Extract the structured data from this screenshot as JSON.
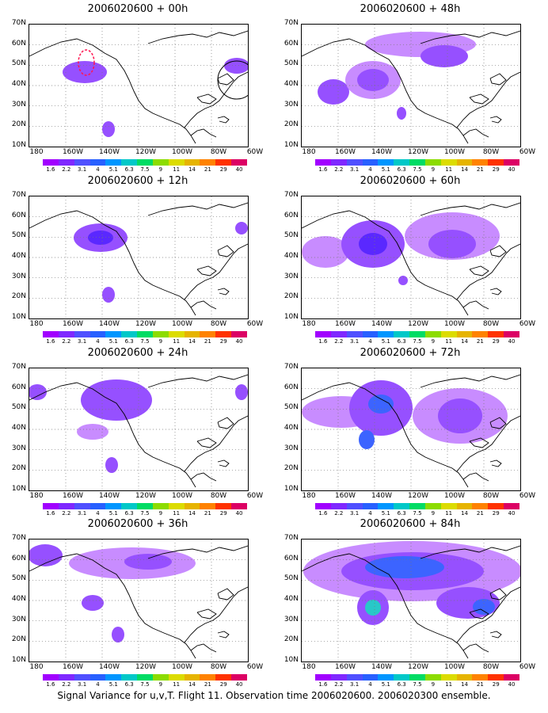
{
  "panels": [
    {
      "title": "2006020600 + 00h"
    },
    {
      "title": "2006020600 + 48h"
    },
    {
      "title": "2006020600 + 12h"
    },
    {
      "title": "2006020600 + 60h"
    },
    {
      "title": "2006020600 + 24h"
    },
    {
      "title": "2006020600 + 72h"
    },
    {
      "title": "2006020600 + 36h"
    },
    {
      "title": "2006020600 + 84h"
    }
  ],
  "y_labels": [
    "70N",
    "60N",
    "50N",
    "40N",
    "30N",
    "20N",
    "10N"
  ],
  "x_labels": [
    "180",
    "160W",
    "140W",
    "120W",
    "100W",
    "80W",
    "60W"
  ],
  "colorbar": {
    "labels": [
      "1.6",
      "2.2",
      "3.1",
      "4",
      "5.1",
      "6.3",
      "7.5",
      "9",
      "11",
      "14",
      "21",
      "29",
      "40"
    ],
    "colors": [
      "#a100ff",
      "#7f28ff",
      "#5050ff",
      "#2860ff",
      "#0096ff",
      "#00c8c8",
      "#00dc64",
      "#8cdc00",
      "#dcdc00",
      "#e6b400",
      "#ff8200",
      "#ff3200",
      "#dc0064"
    ]
  },
  "footer": "Signal Variance for u,v,T. Flight 11. Observation time 2006020600. 2006020300 ensemble.",
  "colors": {
    "light": "#c88cff",
    "medium": "#9650ff",
    "strong": "#5a28ff",
    "blue": "#3c64ff",
    "cyan": "#28c8c8",
    "marker": "#ff1450"
  }
}
